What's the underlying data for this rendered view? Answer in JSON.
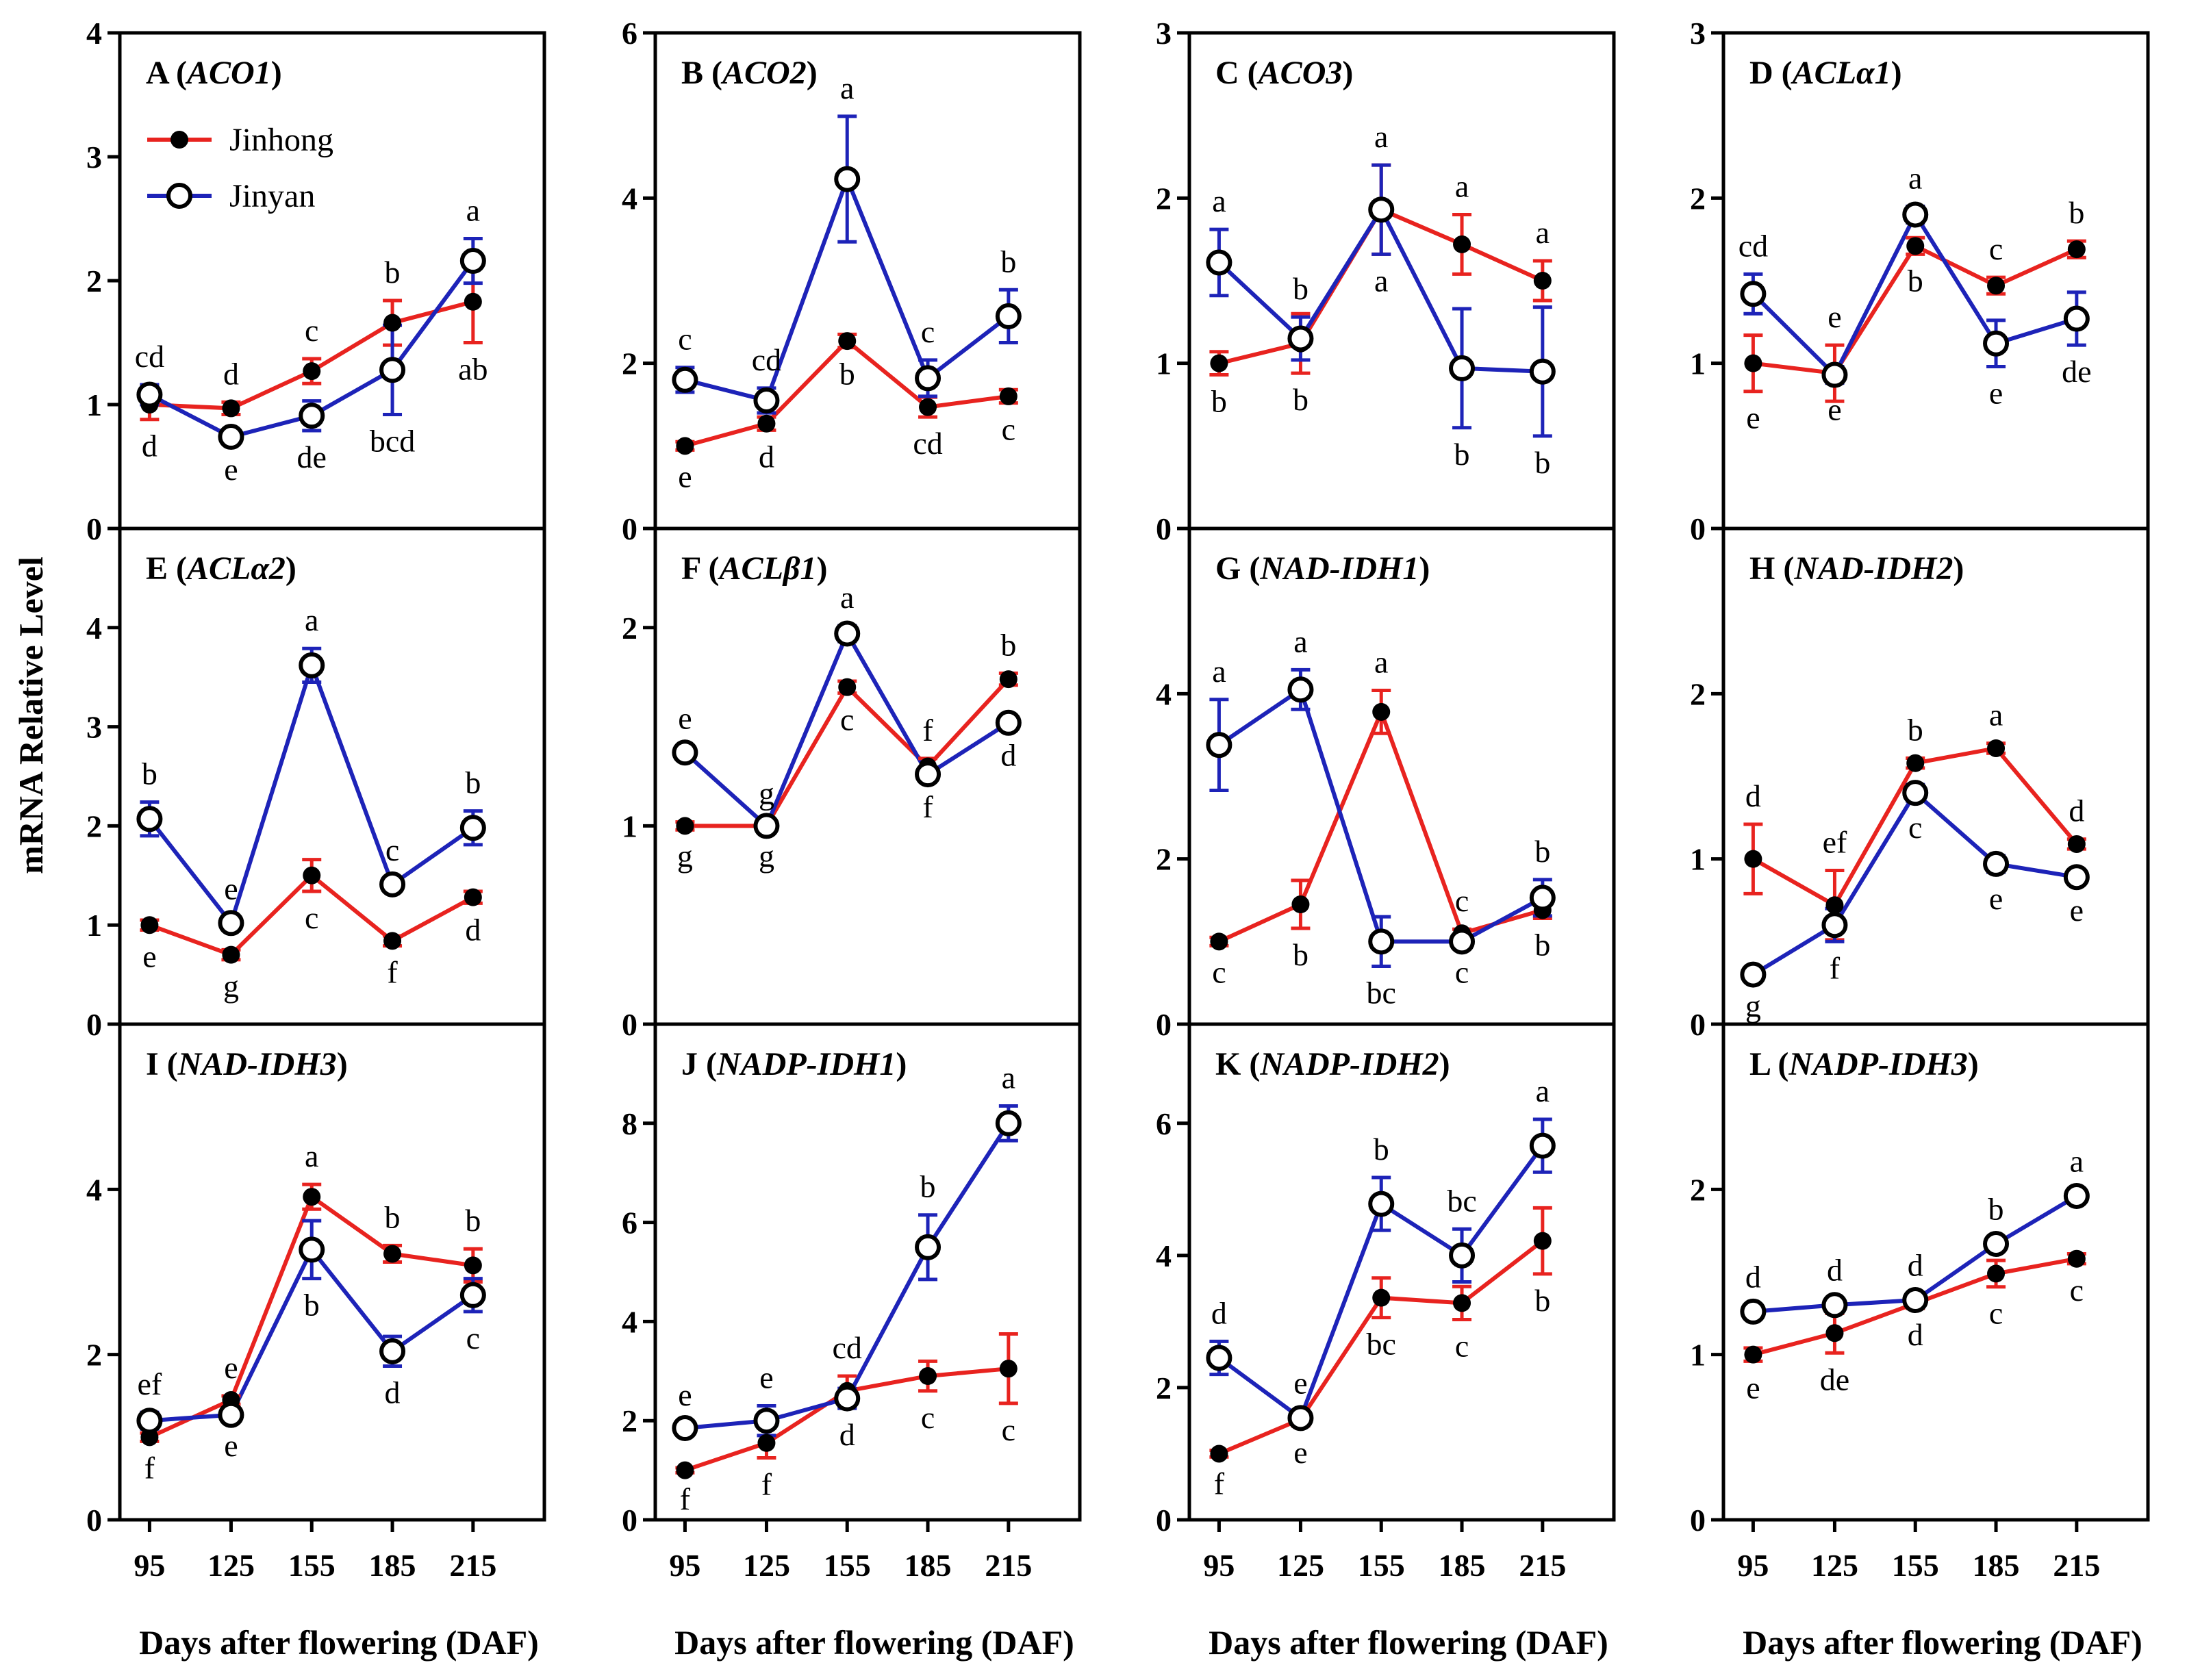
{
  "chart_data": {
    "type": "line",
    "ylabel": "mRNA Relative Level",
    "xlabel": "Days after flowering (DAF)",
    "x": [
      "95",
      "125",
      "155",
      "185",
      "215"
    ],
    "legend": [
      {
        "name": "Jinhong",
        "color": "#e8231f",
        "marker": "filled-circle"
      },
      {
        "name": "Jinyan",
        "color": "#1d23b8",
        "marker": "open-circle"
      }
    ],
    "panels": [
      {
        "letter": "A",
        "gene": "ACO1",
        "ylim": [
          0,
          4
        ],
        "yticks": [
          "0",
          "1",
          "2",
          "3",
          "4"
        ],
        "series": [
          {
            "name": "Jinhong",
            "values": [
              1.0,
              0.97,
              1.27,
              1.66,
              1.83
            ],
            "errors": [
              0.12,
              0.05,
              0.1,
              0.18,
              0.33
            ],
            "labels": [
              "d",
              "d",
              "c",
              "b",
              "ab"
            ]
          },
          {
            "name": "Jinyan",
            "values": [
              1.08,
              0.74,
              0.91,
              1.28,
              2.16
            ],
            "errors": [
              0.08,
              0.05,
              0.12,
              0.36,
              0.18
            ],
            "labels": [
              "cd",
              "e",
              "de",
              "bcd",
              "a"
            ]
          }
        ]
      },
      {
        "letter": "B",
        "gene": "ACO2",
        "ylim": [
          0,
          6
        ],
        "yticks": [
          "0",
          "2",
          "4",
          "6"
        ],
        "series": [
          {
            "name": "Jinhong",
            "values": [
              1.0,
              1.27,
              2.27,
              1.47,
              1.6
            ],
            "errors": [
              0.05,
              0.08,
              0.08,
              0.12,
              0.08
            ],
            "labels": [
              "e",
              "d",
              "b",
              "cd",
              "c"
            ]
          },
          {
            "name": "Jinyan",
            "values": [
              1.8,
              1.55,
              4.23,
              1.82,
              2.57
            ],
            "errors": [
              0.15,
              0.15,
              0.76,
              0.22,
              0.32
            ],
            "labels": [
              "c",
              "cd",
              "a",
              "c",
              "b"
            ]
          }
        ]
      },
      {
        "letter": "C",
        "gene": "ACO3",
        "ylim": [
          0,
          3
        ],
        "yticks": [
          "0",
          "1",
          "2",
          "3"
        ],
        "series": [
          {
            "name": "Jinhong",
            "values": [
              1.0,
              1.12,
              1.93,
              1.72,
              1.5
            ],
            "errors": [
              0.07,
              0.18,
              0.27,
              0.18,
              0.12
            ],
            "labels": [
              "b",
              "b",
              "a",
              "a",
              "a"
            ]
          },
          {
            "name": "Jinyan",
            "values": [
              1.61,
              1.15,
              1.93,
              0.97,
              0.95
            ],
            "errors": [
              0.2,
              0.13,
              0.27,
              0.36,
              0.39
            ],
            "labels": [
              "a",
              "b",
              "a",
              "b",
              "b"
            ]
          }
        ]
      },
      {
        "letter": "D",
        "gene": "ACLα1",
        "ylim": [
          0,
          3
        ],
        "yticks": [
          "0",
          "1",
          "2",
          "3"
        ],
        "series": [
          {
            "name": "Jinhong",
            "values": [
              1.0,
              0.94,
              1.71,
              1.47,
              1.69
            ],
            "errors": [
              0.17,
              0.17,
              0.05,
              0.05,
              0.05
            ],
            "labels": [
              "e",
              "e",
              "b",
              "c",
              "b"
            ]
          },
          {
            "name": "Jinyan",
            "values": [
              1.42,
              0.93,
              1.9,
              1.12,
              1.27
            ],
            "errors": [
              0.12,
              0.05,
              0.05,
              0.14,
              0.16
            ],
            "labels": [
              "cd",
              "e",
              "a",
              "e",
              "de"
            ]
          }
        ]
      },
      {
        "letter": "E",
        "gene": "ACLα2",
        "ylim": [
          0,
          5
        ],
        "yticks": [
          "0",
          "1",
          "2",
          "3",
          "4"
        ],
        "series": [
          {
            "name": "Jinhong",
            "values": [
              1.0,
              0.7,
              1.5,
              0.84,
              1.28
            ],
            "errors": [
              0.05,
              0.05,
              0.16,
              0.05,
              0.06
            ],
            "labels": [
              "e",
              "g",
              "c",
              "f",
              "d"
            ]
          },
          {
            "name": "Jinyan",
            "values": [
              2.07,
              1.02,
              3.62,
              1.41,
              1.98
            ],
            "errors": [
              0.17,
              0.06,
              0.17,
              0.06,
              0.17
            ],
            "labels": [
              "b",
              "e",
              "a",
              "c",
              "b"
            ]
          }
        ]
      },
      {
        "letter": "F",
        "gene": "ACLβ1",
        "ylim": [
          0,
          2.5
        ],
        "yticks": [
          "0",
          "1",
          "2"
        ],
        "series": [
          {
            "name": "Jinhong",
            "values": [
              1.0,
              1.0,
              1.7,
              1.3,
              1.74
            ],
            "errors": [
              0.02,
              0.02,
              0.03,
              0.04,
              0.03
            ],
            "labels": [
              "g",
              "g",
              "c",
              "f",
              "b"
            ]
          },
          {
            "name": "Jinyan",
            "values": [
              1.37,
              1.0,
              1.97,
              1.26,
              1.52
            ],
            "errors": [
              0.03,
              0.02,
              0.04,
              0.03,
              0.03
            ],
            "labels": [
              "e",
              "g",
              "a",
              "f",
              "d"
            ]
          }
        ]
      },
      {
        "letter": "G",
        "gene": "NAD-IDH1",
        "ylim": [
          0,
          6
        ],
        "yticks": [
          "0",
          "2",
          "4"
        ],
        "series": [
          {
            "name": "Jinhong",
            "values": [
              1.0,
              1.45,
              3.78,
              1.1,
              1.38
            ],
            "errors": [
              0.05,
              0.29,
              0.26,
              0.05,
              0.1
            ],
            "labels": [
              "c",
              "b",
              "a",
              "c",
              "b"
            ]
          },
          {
            "name": "Jinyan",
            "values": [
              3.38,
              4.05,
              1.0,
              1.0,
              1.53
            ],
            "errors": [
              0.55,
              0.24,
              0.3,
              0.05,
              0.22
            ],
            "labels": [
              "a",
              "a",
              "bc",
              "c",
              "b"
            ]
          }
        ]
      },
      {
        "letter": "H",
        "gene": "NAD-IDH2",
        "ylim": [
          0,
          3
        ],
        "yticks": [
          "0",
          "1",
          "2"
        ],
        "series": [
          {
            "name": "Jinhong",
            "values": [
              1.0,
              0.72,
              1.58,
              1.67,
              1.09
            ],
            "errors": [
              0.21,
              0.21,
              0.03,
              0.03,
              0.03
            ],
            "labels": [
              "d",
              "ef",
              "b",
              "a",
              "d"
            ]
          },
          {
            "name": "Jinyan",
            "values": [
              0.3,
              0.6,
              1.4,
              0.97,
              0.89
            ],
            "errors": [
              0.03,
              0.1,
              0.05,
              0.05,
              0.04
            ],
            "labels": [
              "g",
              "f",
              "c",
              "e",
              "e"
            ]
          }
        ]
      },
      {
        "letter": "I",
        "gene": "NAD-IDH3",
        "ylim": [
          0,
          6
        ],
        "yticks": [
          "0",
          "2",
          "4"
        ],
        "series": [
          {
            "name": "Jinhong",
            "values": [
              1.0,
              1.45,
              3.91,
              3.22,
              3.08
            ],
            "errors": [
              0.05,
              0.05,
              0.15,
              0.1,
              0.2
            ],
            "labels": [
              "f",
              "e",
              "a",
              "b",
              "b"
            ]
          },
          {
            "name": "Jinyan",
            "values": [
              1.2,
              1.27,
              3.27,
              2.04,
              2.72
            ],
            "errors": [
              0.1,
              0.05,
              0.35,
              0.18,
              0.2
            ],
            "labels": [
              "ef",
              "e",
              "b",
              "d",
              "c"
            ]
          }
        ]
      },
      {
        "letter": "J",
        "gene": "NADP-IDH1",
        "ylim": [
          0,
          10
        ],
        "yticks": [
          "0",
          "2",
          "4",
          "6",
          "8"
        ],
        "series": [
          {
            "name": "Jinhong",
            "values": [
              1.0,
              1.55,
              2.6,
              2.9,
              3.05
            ],
            "errors": [
              0.05,
              0.3,
              0.3,
              0.3,
              0.7
            ],
            "labels": [
              "f",
              "f",
              "cd",
              "c",
              "c"
            ]
          },
          {
            "name": "Jinyan",
            "values": [
              1.85,
              2.0,
              2.45,
              5.5,
              8.0
            ],
            "errors": [
              0.1,
              0.3,
              0.2,
              0.65,
              0.35
            ],
            "labels": [
              "e",
              "e",
              "d",
              "b",
              "a"
            ]
          }
        ]
      },
      {
        "letter": "K",
        "gene": "NADP-IDH2",
        "ylim": [
          0,
          7.5
        ],
        "yticks": [
          "0",
          "2",
          "4",
          "6"
        ],
        "series": [
          {
            "name": "Jinhong",
            "values": [
              1.0,
              1.52,
              3.36,
              3.28,
              4.22
            ],
            "errors": [
              0.05,
              0.1,
              0.3,
              0.25,
              0.5
            ],
            "labels": [
              "f",
              "e",
              "bc",
              "c",
              "b"
            ]
          },
          {
            "name": "Jinyan",
            "values": [
              2.45,
              1.54,
              4.78,
              4.0,
              5.66
            ],
            "errors": [
              0.25,
              0.1,
              0.4,
              0.4,
              0.4
            ],
            "labels": [
              "d",
              "e",
              "b",
              "bc",
              "a"
            ]
          }
        ]
      },
      {
        "letter": "L",
        "gene": "NADP-IDH3",
        "ylim": [
          0,
          3
        ],
        "yticks": [
          "0",
          "1",
          "2"
        ],
        "series": [
          {
            "name": "Jinhong",
            "values": [
              1.0,
              1.13,
              1.31,
              1.49,
              1.58
            ],
            "errors": [
              0.04,
              0.12,
              0.03,
              0.08,
              0.03
            ],
            "labels": [
              "e",
              "de",
              "d",
              "c",
              "c"
            ]
          },
          {
            "name": "Jinyan",
            "values": [
              1.26,
              1.3,
              1.33,
              1.67,
              1.96
            ],
            "errors": [
              0.04,
              0.04,
              0.04,
              0.04,
              0.04
            ],
            "labels": [
              "d",
              "d",
              "d",
              "b",
              "a"
            ]
          }
        ]
      }
    ]
  }
}
